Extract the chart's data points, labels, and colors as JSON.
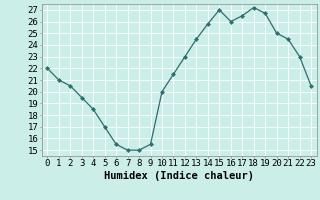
{
  "title": "",
  "xlabel": "Humidex (Indice chaleur)",
  "ylabel": "",
  "x_values": [
    0,
    1,
    2,
    3,
    4,
    5,
    6,
    7,
    8,
    9,
    10,
    11,
    12,
    13,
    14,
    15,
    16,
    17,
    18,
    19,
    20,
    21,
    22,
    23
  ],
  "y_values": [
    22,
    21,
    20.5,
    19.5,
    18.5,
    17,
    15.5,
    15,
    15,
    15.5,
    20,
    21.5,
    23,
    24.5,
    25.8,
    27,
    26,
    26.5,
    27.2,
    26.7,
    25,
    24.5,
    23,
    20.5
  ],
  "ylim_min": 14.5,
  "ylim_max": 27.5,
  "yticks": [
    15,
    16,
    17,
    18,
    19,
    20,
    21,
    22,
    23,
    24,
    25,
    26,
    27
  ],
  "xticks": [
    0,
    1,
    2,
    3,
    4,
    5,
    6,
    7,
    8,
    9,
    10,
    11,
    12,
    13,
    14,
    15,
    16,
    17,
    18,
    19,
    20,
    21,
    22,
    23
  ],
  "line_color": "#2d6e6e",
  "marker": "D",
  "marker_size": 2.0,
  "bg_color": "#cceee8",
  "grid_color": "#ffffff",
  "font_family": "monospace",
  "xlabel_fontsize": 7.5,
  "tick_fontsize": 6.5,
  "line_width": 0.9
}
